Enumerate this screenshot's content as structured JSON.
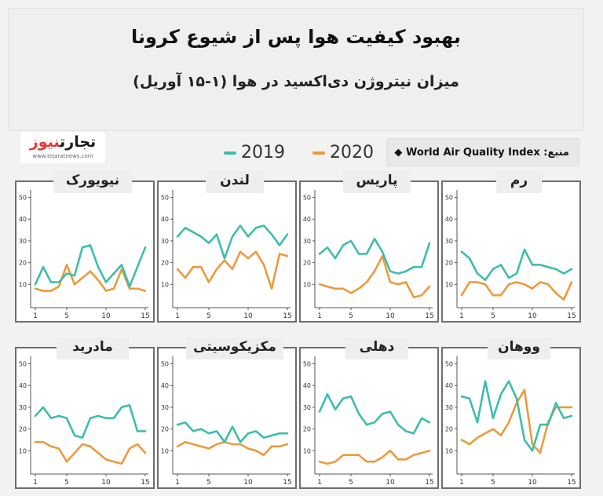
{
  "header": {
    "title": "بهبود کیفیت هوا پس از شیوع کرونا",
    "subtitle": "میزان نیتروژن دی‌اکسید در هوا (۱-۱۵ آوریل)"
  },
  "logo": {
    "brand_part1": "تجارت",
    "brand_part2": "نیوز",
    "url_text": "www.tejaratnews.com"
  },
  "source_label": "منبع: World Air Quality Index ◆",
  "colors": {
    "series_2019": "#3dbdad",
    "series_2020": "#ec9a3c",
    "axis": "#555555"
  },
  "legend": [
    {
      "name": "2019",
      "color": "#3dbdad"
    },
    {
      "name": "2020",
      "color": "#ec9a3c"
    }
  ],
  "chart_data": [
    {
      "type": "line",
      "title": "نیویورک",
      "x": [
        1,
        2,
        3,
        4,
        5,
        6,
        7,
        8,
        9,
        10,
        11,
        12,
        13,
        14,
        15
      ],
      "xticks": [
        1,
        5,
        10,
        15
      ],
      "yticks": [
        10,
        20,
        30,
        40,
        50
      ],
      "ylim": [
        0,
        52
      ],
      "series": [
        {
          "name": "2019",
          "values": [
            10,
            18,
            11,
            11,
            15,
            14,
            27,
            28,
            18,
            11,
            15,
            19,
            9,
            18,
            27
          ]
        },
        {
          "name": "2020",
          "values": [
            8,
            7,
            7,
            9,
            19,
            10,
            13,
            16,
            12,
            7,
            8,
            17,
            8,
            8,
            7
          ]
        }
      ]
    },
    {
      "type": "line",
      "title": "لندن",
      "x": [
        1,
        2,
        3,
        4,
        5,
        6,
        7,
        8,
        9,
        10,
        11,
        12,
        13,
        14,
        15
      ],
      "xticks": [
        1,
        5,
        10,
        15
      ],
      "yticks": [
        10,
        20,
        30,
        40,
        50
      ],
      "ylim": [
        0,
        52
      ],
      "series": [
        {
          "name": "2019",
          "values": [
            32,
            36,
            34,
            32,
            29,
            33,
            22,
            32,
            37,
            32,
            36,
            37,
            33,
            28,
            33
          ]
        },
        {
          "name": "2020",
          "values": [
            17,
            13,
            18,
            18,
            11,
            17,
            21,
            17,
            25,
            22,
            25,
            19,
            8,
            24,
            23
          ]
        }
      ]
    },
    {
      "type": "line",
      "title": "پاریس",
      "x": [
        1,
        2,
        3,
        4,
        5,
        6,
        7,
        8,
        9,
        10,
        11,
        12,
        13,
        14,
        15
      ],
      "xticks": [
        1,
        5,
        10,
        15
      ],
      "yticks": [
        10,
        20,
        30,
        40,
        50
      ],
      "ylim": [
        0,
        52
      ],
      "series": [
        {
          "name": "2019",
          "values": [
            24,
            27,
            22,
            28,
            30,
            24,
            24,
            31,
            25,
            16,
            15,
            16,
            18,
            18,
            29
          ]
        },
        {
          "name": "2020",
          "values": [
            10,
            9,
            8,
            8,
            6,
            8,
            11,
            16,
            23,
            11,
            10,
            11,
            4,
            5,
            9
          ]
        }
      ]
    },
    {
      "type": "line",
      "title": "رم",
      "x": [
        1,
        2,
        3,
        4,
        5,
        6,
        7,
        8,
        9,
        10,
        11,
        12,
        13,
        14,
        15
      ],
      "xticks": [
        1,
        5,
        10,
        15
      ],
      "yticks": [
        10,
        20,
        30,
        40,
        50
      ],
      "ylim": [
        0,
        52
      ],
      "series": [
        {
          "name": "2019",
          "values": [
            25,
            22,
            15,
            12,
            17,
            19,
            13,
            15,
            26,
            19,
            19,
            18,
            17,
            15,
            17
          ]
        },
        {
          "name": "2020",
          "values": [
            5,
            11,
            11,
            10,
            5,
            5,
            10,
            11,
            10,
            8,
            11,
            10,
            6,
            3,
            11
          ]
        }
      ]
    },
    {
      "type": "line",
      "title": "مادرید",
      "x": [
        1,
        2,
        3,
        4,
        5,
        6,
        7,
        8,
        9,
        10,
        11,
        12,
        13,
        14,
        15
      ],
      "xticks": [
        1,
        5,
        10,
        15
      ],
      "yticks": [
        10,
        20,
        30,
        40,
        50
      ],
      "ylim": [
        0,
        52
      ],
      "series": [
        {
          "name": "2019",
          "values": [
            26,
            30,
            25,
            26,
            25,
            17,
            16,
            25,
            26,
            25,
            25,
            30,
            31,
            19,
            19
          ]
        },
        {
          "name": "2020",
          "values": [
            14,
            14,
            12,
            11,
            5,
            9,
            13,
            12,
            9,
            6,
            5,
            4,
            11,
            13,
            9
          ]
        }
      ]
    },
    {
      "type": "line",
      "title": "مکزیکوسیتی",
      "x": [
        1,
        2,
        3,
        4,
        5,
        6,
        7,
        8,
        9,
        10,
        11,
        12,
        13,
        14,
        15
      ],
      "xticks": [
        1,
        5,
        10,
        15
      ],
      "yticks": [
        10,
        20,
        30,
        40,
        50
      ],
      "ylim": [
        0,
        52
      ],
      "series": [
        {
          "name": "2019",
          "values": [
            22,
            23,
            19,
            20,
            18,
            19,
            14,
            21,
            14,
            18,
            19,
            16,
            17,
            18,
            18
          ]
        },
        {
          "name": "2020",
          "values": [
            12,
            14,
            13,
            12,
            11,
            13,
            14,
            13,
            13,
            11,
            10,
            8,
            12,
            12,
            13
          ]
        }
      ]
    },
    {
      "type": "line",
      "title": "دهلی",
      "x": [
        1,
        2,
        3,
        4,
        5,
        6,
        7,
        8,
        9,
        10,
        11,
        12,
        13,
        14,
        15
      ],
      "xticks": [
        1,
        5,
        10,
        15
      ],
      "yticks": [
        10,
        20,
        30,
        40,
        50
      ],
      "ylim": [
        0,
        52
      ],
      "series": [
        {
          "name": "2019",
          "values": [
            28,
            36,
            29,
            34,
            35,
            27,
            22,
            23,
            27,
            28,
            22,
            19,
            18,
            25,
            23
          ]
        },
        {
          "name": "2020",
          "values": [
            5,
            4,
            5,
            8,
            8,
            8,
            5,
            5,
            7,
            10,
            6,
            6,
            8,
            9,
            10
          ]
        }
      ]
    },
    {
      "type": "line",
      "title": "ووهان",
      "x": [
        1,
        2,
        3,
        4,
        5,
        6,
        7,
        8,
        9,
        10,
        11,
        12,
        13,
        14,
        15
      ],
      "xticks": [
        1,
        5,
        10,
        15
      ],
      "yticks": [
        10,
        20,
        30,
        40,
        50
      ],
      "ylim": [
        0,
        52
      ],
      "series": [
        {
          "name": "2019",
          "values": [
            35,
            34,
            23,
            42,
            25,
            36,
            42,
            34,
            15,
            10,
            22,
            22,
            32,
            25,
            26
          ]
        },
        {
          "name": "2020",
          "values": [
            15,
            13,
            16,
            18,
            20,
            17,
            23,
            32,
            38,
            13,
            9,
            23,
            30,
            30,
            30
          ]
        }
      ]
    }
  ]
}
